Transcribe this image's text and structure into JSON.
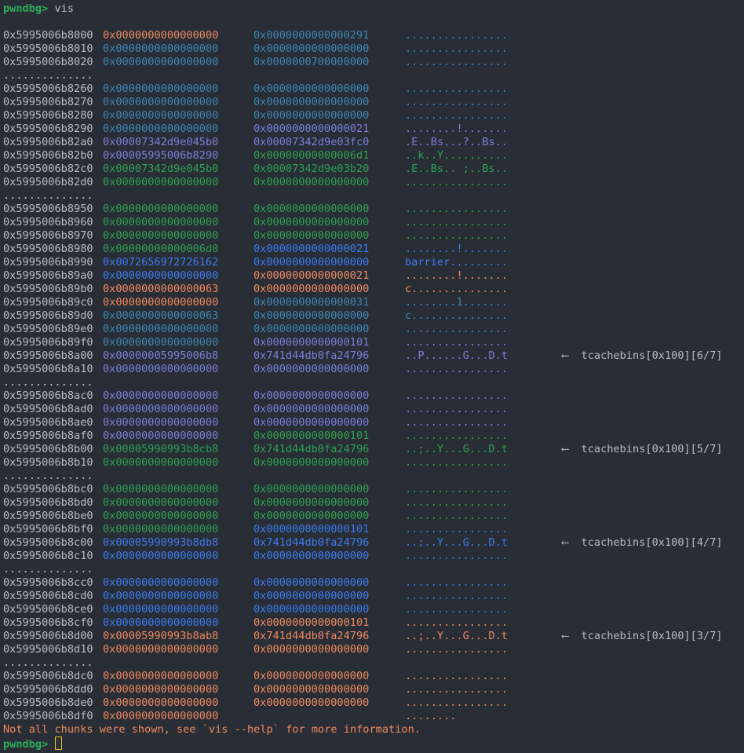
{
  "colors": {
    "address": "#b9bdc5",
    "orange": "#f08a5d",
    "steel": "#3d87b4",
    "purple": "#7b7fd9",
    "green": "#2ca34f",
    "blue": "#3b7bf0",
    "prompt": "#2fae58",
    "cursor": "#f0c020"
  },
  "prompt": {
    "label": "pwndbg>",
    "command": "vis"
  },
  "separator": "..............",
  "rows": [
    {
      "addr": "0x5995006b8000",
      "v1": "0x0000000000000000",
      "v2": "0x0000000000000291",
      "ascii": "................",
      "c1": "orange",
      "c2": "steel",
      "c3": "steel"
    },
    {
      "addr": "0x5995006b8010",
      "v1": "0x0000000000000000",
      "v2": "0x0000000000000000",
      "ascii": "................",
      "c1": "steel",
      "c2": "steel",
      "c3": "steel"
    },
    {
      "addr": "0x5995006b8020",
      "v1": "0x0000000000000000",
      "v2": "0x0000000700000000",
      "ascii": "................",
      "c1": "steel",
      "c2": "steel",
      "c3": "steel"
    },
    {
      "sep": true
    },
    {
      "addr": "0x5995006b8260",
      "v1": "0x0000000000000000",
      "v2": "0x0000000000000000",
      "ascii": "................",
      "c1": "steel",
      "c2": "steel",
      "c3": "steel"
    },
    {
      "addr": "0x5995006b8270",
      "v1": "0x0000000000000000",
      "v2": "0x0000000000000000",
      "ascii": "................",
      "c1": "steel",
      "c2": "steel",
      "c3": "steel"
    },
    {
      "addr": "0x5995006b8280",
      "v1": "0x0000000000000000",
      "v2": "0x0000000000000000",
      "ascii": "................",
      "c1": "steel",
      "c2": "steel",
      "c3": "steel"
    },
    {
      "addr": "0x5995006b8290",
      "v1": "0x0000000000000000",
      "v2": "0x0000000000000021",
      "ascii": "........!.......",
      "c1": "steel",
      "c2": "purple",
      "c3": "purple"
    },
    {
      "addr": "0x5995006b82a0",
      "v1": "0x00007342d9e045b0",
      "v2": "0x00007342d9e03fc0",
      "ascii": ".E..Bs...?..Bs..",
      "c1": "purple",
      "c2": "purple",
      "c3": "purple"
    },
    {
      "addr": "0x5995006b82b0",
      "v1": "0x00005995006b8290",
      "v2": "0x00000000000006d1",
      "ascii": "..k..Y..........",
      "c1": "purple",
      "c2": "green",
      "c3": "green"
    },
    {
      "addr": "0x5995006b82c0",
      "v1": "0x00007342d9e045b0",
      "v2": "0x00007342d9e03b20",
      "ascii": ".E..Bs.. ;..Bs..",
      "c1": "green",
      "c2": "green",
      "c3": "green"
    },
    {
      "addr": "0x5995006b82d0",
      "v1": "0x0000000000000000",
      "v2": "0x0000000000000000",
      "ascii": "................",
      "c1": "green",
      "c2": "green",
      "c3": "green"
    },
    {
      "sep": true
    },
    {
      "addr": "0x5995006b8950",
      "v1": "0x0000000000000000",
      "v2": "0x0000000000000000",
      "ascii": "................",
      "c1": "green",
      "c2": "green",
      "c3": "green"
    },
    {
      "addr": "0x5995006b8960",
      "v1": "0x0000000000000000",
      "v2": "0x0000000000000000",
      "ascii": "................",
      "c1": "green",
      "c2": "green",
      "c3": "green"
    },
    {
      "addr": "0x5995006b8970",
      "v1": "0x0000000000000000",
      "v2": "0x0000000000000000",
      "ascii": "................",
      "c1": "green",
      "c2": "green",
      "c3": "green"
    },
    {
      "addr": "0x5995006b8980",
      "v1": "0x00000000000006d0",
      "v2": "0x0000000000000021",
      "ascii": "........!.......",
      "c1": "green",
      "c2": "blue",
      "c3": "blue"
    },
    {
      "addr": "0x5995006b8990",
      "v1": "0x0072656972726162",
      "v2": "0x0000000000000000",
      "ascii": "barrier.........",
      "c1": "blue",
      "c2": "blue",
      "c3": "blue"
    },
    {
      "addr": "0x5995006b89a0",
      "v1": "0x0000000000000000",
      "v2": "0x0000000000000021",
      "ascii": "........!.......",
      "c1": "blue",
      "c2": "orange",
      "c3": "orange"
    },
    {
      "addr": "0x5995006b89b0",
      "v1": "0x0000000000000063",
      "v2": "0x0000000000000000",
      "ascii": "c...............",
      "c1": "orange",
      "c2": "orange",
      "c3": "orange"
    },
    {
      "addr": "0x5995006b89c0",
      "v1": "0x0000000000000000",
      "v2": "0x0000000000000031",
      "ascii": "........1.......",
      "c1": "orange",
      "c2": "steel",
      "c3": "steel"
    },
    {
      "addr": "0x5995006b89d0",
      "v1": "0x0000000000000063",
      "v2": "0x0000000000000000",
      "ascii": "c...............",
      "c1": "steel",
      "c2": "steel",
      "c3": "steel"
    },
    {
      "addr": "0x5995006b89e0",
      "v1": "0x0000000000000000",
      "v2": "0x0000000000000000",
      "ascii": "................",
      "c1": "steel",
      "c2": "steel",
      "c3": "steel"
    },
    {
      "addr": "0x5995006b89f0",
      "v1": "0x0000000000000000",
      "v2": "0x0000000000000101",
      "ascii": "................",
      "c1": "steel",
      "c2": "purple",
      "c3": "purple"
    },
    {
      "addr": "0x5995006b8a00",
      "v1": "0x00000005995006b8",
      "v2": "0x741d44db0fa24796",
      "ascii": "..P......G...D.t",
      "c1": "purple",
      "c2": "purple",
      "c3": "purple",
      "note": "⟵  tcachebins[0x100][6/7]"
    },
    {
      "addr": "0x5995006b8a10",
      "v1": "0x0000000000000000",
      "v2": "0x0000000000000000",
      "ascii": "................",
      "c1": "purple",
      "c2": "purple",
      "c3": "purple"
    },
    {
      "sep": true
    },
    {
      "addr": "0x5995006b8ac0",
      "v1": "0x0000000000000000",
      "v2": "0x0000000000000000",
      "ascii": "................",
      "c1": "purple",
      "c2": "purple",
      "c3": "purple"
    },
    {
      "addr": "0x5995006b8ad0",
      "v1": "0x0000000000000000",
      "v2": "0x0000000000000000",
      "ascii": "................",
      "c1": "purple",
      "c2": "purple",
      "c3": "purple"
    },
    {
      "addr": "0x5995006b8ae0",
      "v1": "0x0000000000000000",
      "v2": "0x0000000000000000",
      "ascii": "................",
      "c1": "purple",
      "c2": "purple",
      "c3": "purple"
    },
    {
      "addr": "0x5995006b8af0",
      "v1": "0x0000000000000000",
      "v2": "0x0000000000000101",
      "ascii": "................",
      "c1": "purple",
      "c2": "green",
      "c3": "green"
    },
    {
      "addr": "0x5995006b8b00",
      "v1": "0x00005990993b8cb8",
      "v2": "0x741d44db0fa24796",
      "ascii": "..;..Y...G...D.t",
      "c1": "green",
      "c2": "green",
      "c3": "green",
      "note": "⟵  tcachebins[0x100][5/7]"
    },
    {
      "addr": "0x5995006b8b10",
      "v1": "0x0000000000000000",
      "v2": "0x0000000000000000",
      "ascii": "................",
      "c1": "green",
      "c2": "green",
      "c3": "green"
    },
    {
      "sep": true
    },
    {
      "addr": "0x5995006b8bc0",
      "v1": "0x0000000000000000",
      "v2": "0x0000000000000000",
      "ascii": "................",
      "c1": "green",
      "c2": "green",
      "c3": "green"
    },
    {
      "addr": "0x5995006b8bd0",
      "v1": "0x0000000000000000",
      "v2": "0x0000000000000000",
      "ascii": "................",
      "c1": "green",
      "c2": "green",
      "c3": "green"
    },
    {
      "addr": "0x5995006b8be0",
      "v1": "0x0000000000000000",
      "v2": "0x0000000000000000",
      "ascii": "................",
      "c1": "green",
      "c2": "green",
      "c3": "green"
    },
    {
      "addr": "0x5995006b8bf0",
      "v1": "0x0000000000000000",
      "v2": "0x0000000000000101",
      "ascii": "................",
      "c1": "green",
      "c2": "blue",
      "c3": "blue"
    },
    {
      "addr": "0x5995006b8c00",
      "v1": "0x00005990993b8db8",
      "v2": "0x741d44db0fa24796",
      "ascii": "..;..Y...G...D.t",
      "c1": "blue",
      "c2": "blue",
      "c3": "blue",
      "note": "⟵  tcachebins[0x100][4/7]"
    },
    {
      "addr": "0x5995006b8c10",
      "v1": "0x0000000000000000",
      "v2": "0x0000000000000000",
      "ascii": "................",
      "c1": "blue",
      "c2": "blue",
      "c3": "blue"
    },
    {
      "sep": true
    },
    {
      "addr": "0x5995006b8cc0",
      "v1": "0x0000000000000000",
      "v2": "0x0000000000000000",
      "ascii": "................",
      "c1": "blue",
      "c2": "blue",
      "c3": "blue"
    },
    {
      "addr": "0x5995006b8cd0",
      "v1": "0x0000000000000000",
      "v2": "0x0000000000000000",
      "ascii": "................",
      "c1": "blue",
      "c2": "blue",
      "c3": "blue"
    },
    {
      "addr": "0x5995006b8ce0",
      "v1": "0x0000000000000000",
      "v2": "0x0000000000000000",
      "ascii": "................",
      "c1": "blue",
      "c2": "blue",
      "c3": "blue"
    },
    {
      "addr": "0x5995006b8cf0",
      "v1": "0x0000000000000000",
      "v2": "0x0000000000000101",
      "ascii": "................",
      "c1": "blue",
      "c2": "orange",
      "c3": "orange"
    },
    {
      "addr": "0x5995006b8d00",
      "v1": "0x00005990993b8ab8",
      "v2": "0x741d44db0fa24796",
      "ascii": "..;..Y...G...D.t",
      "c1": "orange",
      "c2": "orange",
      "c3": "orange",
      "note": "⟵  tcachebins[0x100][3/7]"
    },
    {
      "addr": "0x5995006b8d10",
      "v1": "0x0000000000000000",
      "v2": "0x0000000000000000",
      "ascii": "................",
      "c1": "orange",
      "c2": "orange",
      "c3": "orange"
    },
    {
      "sep": true
    },
    {
      "addr": "0x5995006b8dc0",
      "v1": "0x0000000000000000",
      "v2": "0x0000000000000000",
      "ascii": "................",
      "c1": "orange",
      "c2": "orange",
      "c3": "orange"
    },
    {
      "addr": "0x5995006b8dd0",
      "v1": "0x0000000000000000",
      "v2": "0x0000000000000000",
      "ascii": "................",
      "c1": "orange",
      "c2": "orange",
      "c3": "orange"
    },
    {
      "addr": "0x5995006b8de0",
      "v1": "0x0000000000000000",
      "v2": "0x0000000000000000",
      "ascii": "................",
      "c1": "orange",
      "c2": "orange",
      "c3": "orange"
    },
    {
      "addr": "0x5995006b8df0",
      "v1": "0x0000000000000000",
      "v2": "",
      "ascii": "........",
      "c1": "orange",
      "c2": "orange",
      "c3": "orange"
    }
  ],
  "message": "Not all chunks were shown, see `vis --help` for more information.",
  "final_prompt": {
    "label": "pwndbg>"
  }
}
